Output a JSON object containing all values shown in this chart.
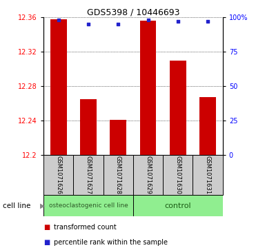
{
  "title": "GDS5398 / 10446693",
  "samples": [
    "GSM1071626",
    "GSM1071627",
    "GSM1071628",
    "GSM1071629",
    "GSM1071630",
    "GSM1071631"
  ],
  "bar_values": [
    12.358,
    12.265,
    12.241,
    12.356,
    12.31,
    12.267
  ],
  "percentile_values": [
    98,
    95,
    95,
    98,
    97,
    97
  ],
  "ymin": 12.2,
  "ymax": 12.36,
  "yticks": [
    12.2,
    12.24,
    12.28,
    12.32,
    12.36
  ],
  "ytick_labels": [
    "12.2",
    "12.24",
    "12.28",
    "12.32",
    "12.36"
  ],
  "y2ticks": [
    0,
    25,
    50,
    75,
    100
  ],
  "y2labels": [
    "0",
    "25",
    "50",
    "75",
    "100%"
  ],
  "bar_color": "#cc0000",
  "dot_color": "#2222cc",
  "bar_width": 0.55,
  "group1_label": "osteoclastogenic cell line",
  "group2_label": "control",
  "cell_line_label": "cell line",
  "legend_bar_label": "transformed count",
  "legend_dot_label": "percentile rank within the sample",
  "group_bg_color": "#90ee90",
  "sample_bg_color": "#cccccc",
  "title_fontsize": 9,
  "tick_fontsize": 7,
  "sample_fontsize": 6,
  "group_fontsize": 7,
  "legend_fontsize": 7
}
